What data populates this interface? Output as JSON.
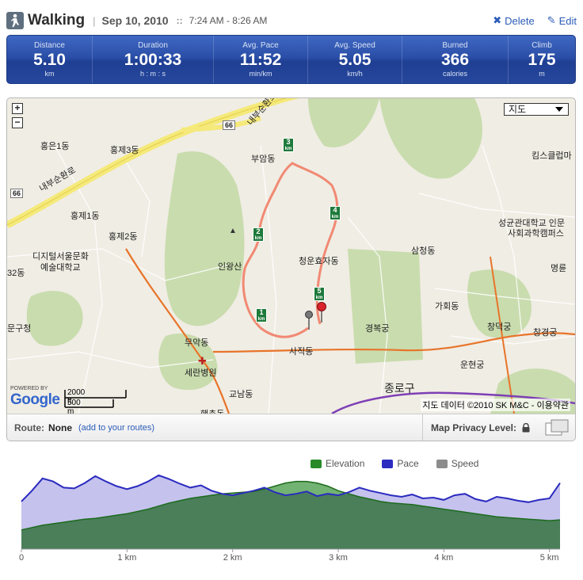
{
  "header": {
    "title": "Walking",
    "date": "Sep 10, 2010",
    "separator": "::",
    "time_range": "7:24 AM - 8:26 AM",
    "delete_label": "Delete",
    "edit_label": "Edit"
  },
  "stats": [
    {
      "label": "Distance",
      "value": "5.10",
      "unit": "km"
    },
    {
      "label": "Duration",
      "value": "1:00:33",
      "unit": "h : m : s"
    },
    {
      "label": "Avg. Pace",
      "value": "11:52",
      "unit": "min/km"
    },
    {
      "label": "Avg. Speed",
      "value": "5.05",
      "unit": "km/h"
    },
    {
      "label": "Burned",
      "value": "366",
      "unit": "calories"
    },
    {
      "label": "Climb",
      "value": "175",
      "unit": "m"
    }
  ],
  "map": {
    "map_type": "지도",
    "zoom_in": "+",
    "zoom_out": "−",
    "scale_ft": "2000 ft",
    "scale_m": "500 m",
    "powered_by": "POWERED BY",
    "google": "Google",
    "copyright": "지도 데이터 ©2010 SK M&C - 이용약관",
    "labels": {
      "hongeun1": "홍은1동",
      "hongje3": "홍제3동",
      "naebu1": "내부순환로",
      "naebu2": "내부순환로",
      "hongje1": "홍제1동",
      "hongje2": "홍제2동",
      "dong32": "32동",
      "digital": "디지털서울문화",
      "digital2": "예술대학교",
      "gucheong": "문구청",
      "buam": "부암동",
      "inwang": "인왕산",
      "cheongun": "청운효자동",
      "samcheong": "삼청동",
      "gahoe": "가회동",
      "gyeongbok": "경복궁",
      "changdeok": "창덕궁",
      "changgyeong": "창경궁",
      "unhyeon": "운현궁",
      "sajik": "사직동",
      "jongno": "종로구",
      "muak": "무악동",
      "seran": "세란병원",
      "gyonam": "교남동",
      "kims": "킴스클럽마",
      "sungkyun1": "성균관대학교 인문",
      "sungkyun2": "사회과학캠퍼스",
      "myeongryun": "명륜",
      "haengchon": "행촌동",
      "r66a": "66",
      "r66b": "66"
    },
    "km_markers": [
      "1",
      "2",
      "3",
      "4",
      "5"
    ],
    "km_unit": "km"
  },
  "route": {
    "label": "Route:",
    "value": "None",
    "add_link": "(add to your routes)",
    "privacy_label": "Map Privacy Level:"
  },
  "legend": [
    {
      "name": "Elevation",
      "color": "#2a8a2a"
    },
    {
      "name": "Pace",
      "color": "#2b2bbf"
    },
    {
      "name": "Speed",
      "color": "#8c8c8c"
    }
  ],
  "chart_data": {
    "type": "area",
    "x_ticks": [
      "0",
      "1 km",
      "2 km",
      "3 km",
      "4 km",
      "5 km"
    ],
    "xlim": [
      0,
      5.1
    ],
    "x": [
      0,
      0.1,
      0.2,
      0.3,
      0.4,
      0.5,
      0.6,
      0.7,
      0.8,
      0.9,
      1.0,
      1.1,
      1.2,
      1.3,
      1.4,
      1.5,
      1.6,
      1.7,
      1.8,
      1.9,
      2.0,
      2.1,
      2.2,
      2.3,
      2.4,
      2.5,
      2.6,
      2.7,
      2.8,
      2.9,
      3.0,
      3.1,
      3.2,
      3.3,
      3.4,
      3.5,
      3.6,
      3.7,
      3.8,
      3.9,
      4.0,
      4.1,
      4.2,
      4.3,
      4.4,
      4.5,
      4.6,
      4.7,
      4.8,
      4.9,
      5.0,
      5.1
    ],
    "series": [
      {
        "name": "Elevation",
        "values": [
          25,
          28,
          31,
          33,
          35,
          37,
          39,
          40,
          42,
          44,
          46,
          49,
          52,
          56,
          60,
          63,
          66,
          68,
          70,
          72,
          73,
          74,
          75,
          78,
          82,
          86,
          88,
          88,
          86,
          82,
          76,
          72,
          68,
          65,
          62,
          60,
          59,
          58,
          56,
          54,
          52,
          50,
          48,
          46,
          44,
          42,
          41,
          40,
          39,
          38,
          37,
          38
        ]
      },
      {
        "name": "Pace",
        "values": [
          62,
          76,
          92,
          88,
          80,
          79,
          86,
          95,
          88,
          82,
          78,
          82,
          88,
          96,
          91,
          85,
          80,
          83,
          76,
          72,
          70,
          73,
          76,
          80,
          74,
          70,
          72,
          75,
          69,
          72,
          70,
          74,
          80,
          76,
          73,
          70,
          68,
          71,
          66,
          67,
          64,
          70,
          72,
          65,
          62,
          68,
          66,
          63,
          61,
          64,
          66,
          86
        ]
      }
    ]
  }
}
